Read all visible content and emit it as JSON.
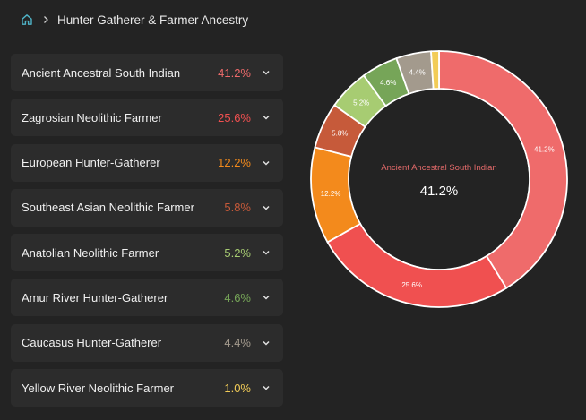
{
  "breadcrumb": {
    "home_icon": "home-icon",
    "separator_icon": "chevron-right-icon",
    "title": "Hunter Gatherer & Farmer Ancestry"
  },
  "ancestry": [
    {
      "name": "Ancient Ancestral South Indian",
      "percent": "41.2%",
      "color": "#ef6b6b"
    },
    {
      "name": "Zagrosian Neolithic Farmer",
      "percent": "25.6%",
      "color": "#f05050"
    },
    {
      "name": "European Hunter-Gatherer",
      "percent": "12.2%",
      "color": "#f38a1c"
    },
    {
      "name": "Southeast Asian Neolithic Farmer",
      "percent": "5.8%",
      "color": "#c65a3a"
    },
    {
      "name": "Anatolian Neolithic Farmer",
      "percent": "5.2%",
      "color": "#a7cc72"
    },
    {
      "name": "Amur River Hunter-Gatherer",
      "percent": "4.6%",
      "color": "#76a558"
    },
    {
      "name": "Caucasus Hunter-Gatherer",
      "percent": "4.4%",
      "color": "#a39a8d"
    },
    {
      "name": "Yellow River Neolithic Farmer",
      "percent": "1.0%",
      "color": "#f2cc57"
    }
  ],
  "chart_data": {
    "type": "pie",
    "donut": true,
    "categories": [
      "Ancient Ancestral South Indian",
      "Zagrosian Neolithic Farmer",
      "European Hunter-Gatherer",
      "Southeast Asian Neolithic Farmer",
      "Anatolian Neolithic Farmer",
      "Amur River Hunter-Gatherer",
      "Caucasus Hunter-Gatherer",
      "Yellow River Neolithic Farmer"
    ],
    "values": [
      41.2,
      25.6,
      12.2,
      5.8,
      5.2,
      4.6,
      4.4,
      1.0
    ],
    "data_labels": [
      "41.2%",
      "25.6%",
      "12.2%",
      "5.8%",
      "5.2%",
      "4.6%",
      "4.4%",
      ""
    ],
    "colors": [
      "#ef6b6b",
      "#f05050",
      "#f38a1c",
      "#c65a3a",
      "#a7cc72",
      "#76a558",
      "#a39a8d",
      "#f2cc57"
    ],
    "center_label": "Ancient Ancestral South Indian",
    "center_value": "41.2%"
  },
  "chevron_icon": "chevron-down-icon"
}
